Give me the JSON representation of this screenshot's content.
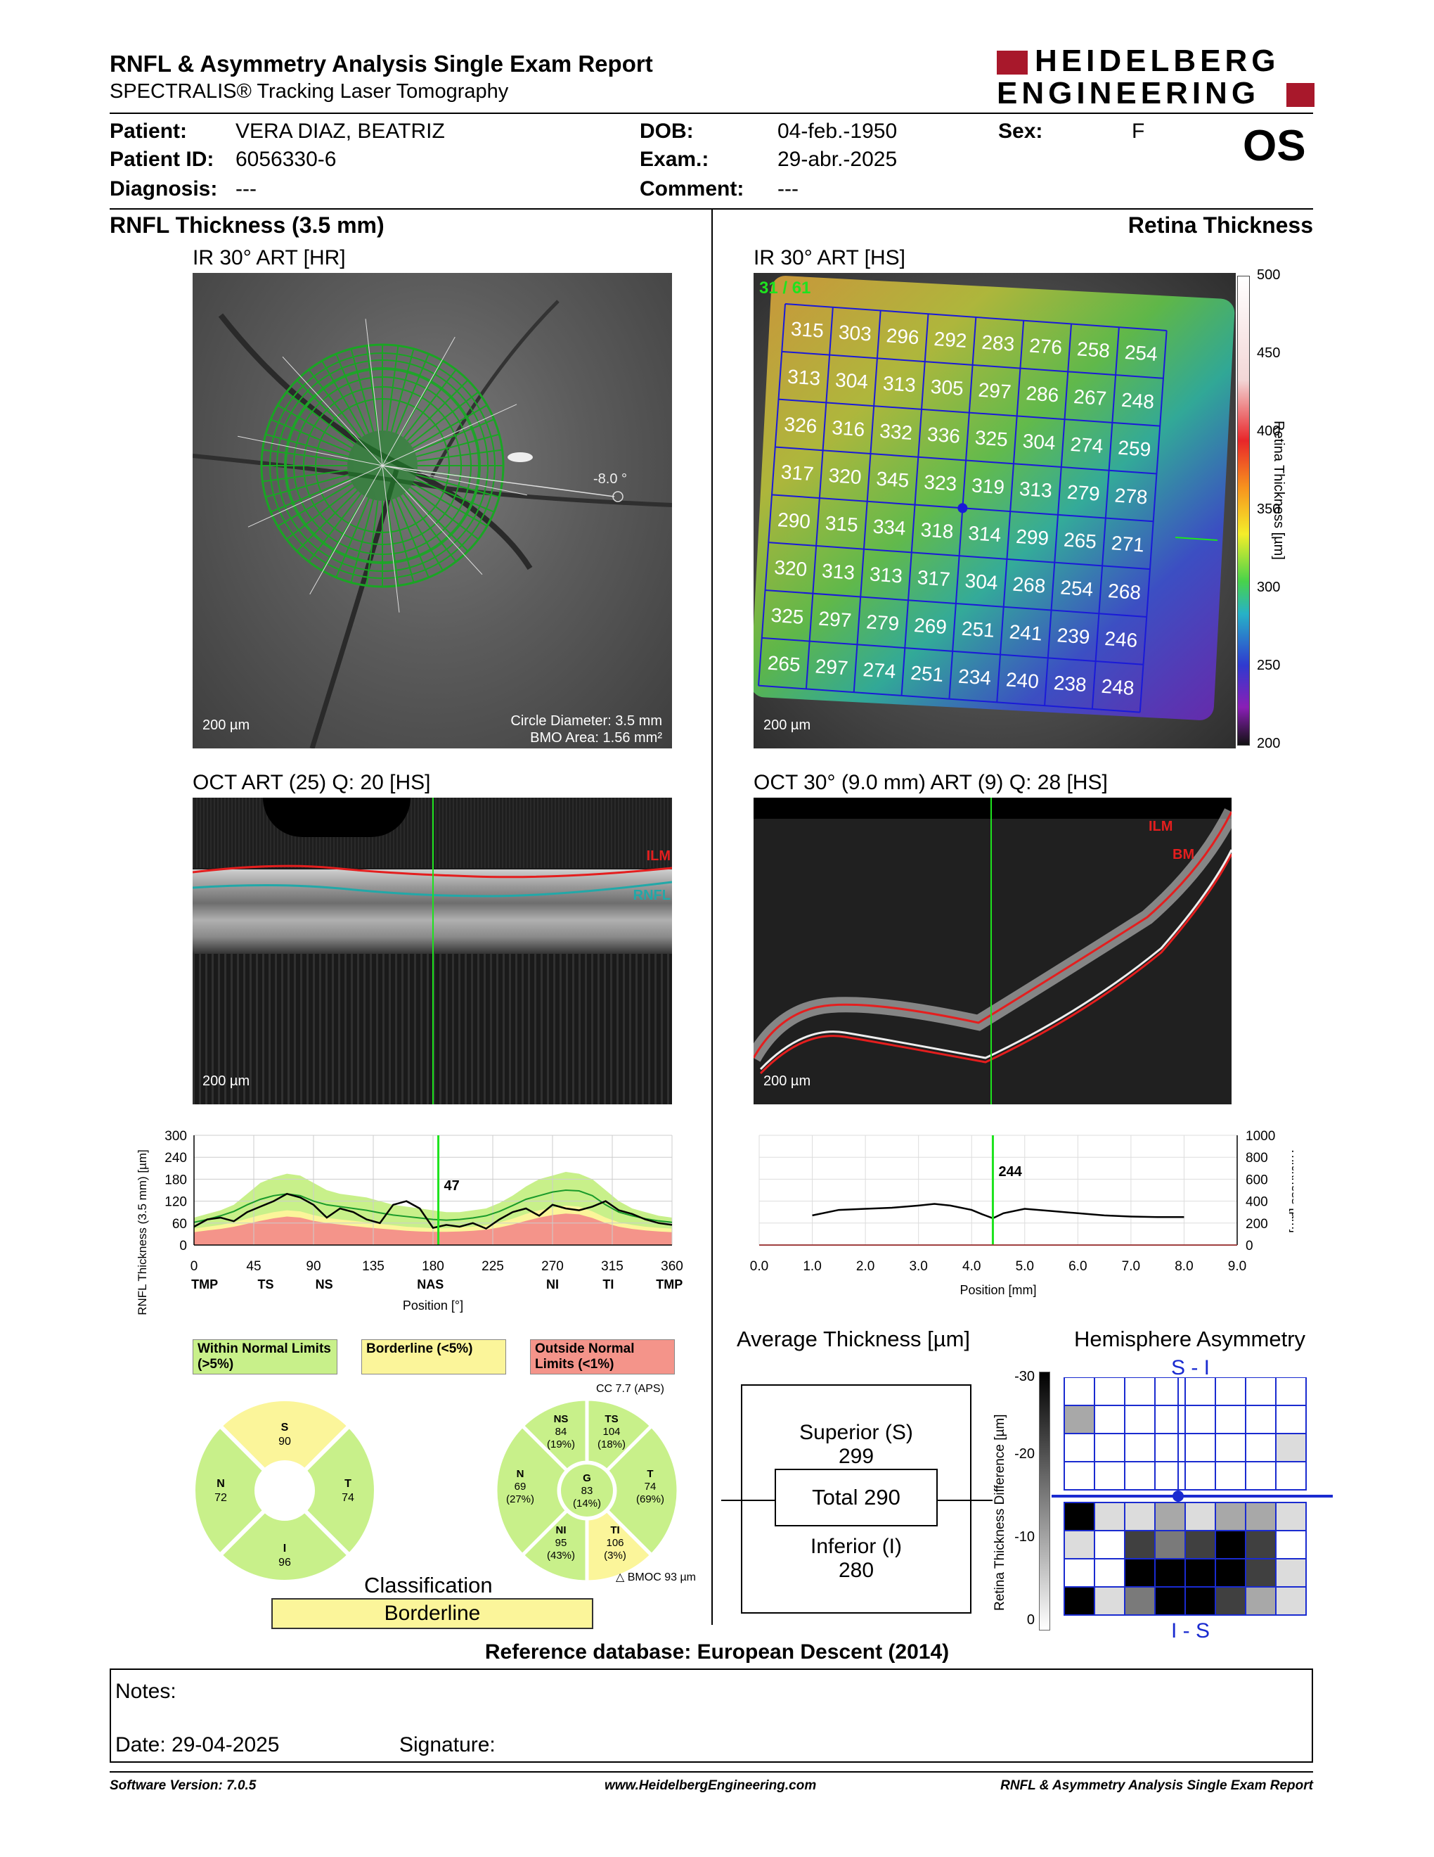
{
  "header": {
    "title": "RNFL & Asymmetry Analysis Single Exam Report",
    "subtitle": "SPECTRALIS® Tracking Laser Tomography",
    "logo_line1": "HEIDELBERG",
    "logo_line2": "ENGINEERING",
    "logo_color": "#a8182b"
  },
  "patient": {
    "patient_label": "Patient:",
    "patient_value": "VERA DIAZ, BEATRIZ",
    "id_label": "Patient ID:",
    "id_value": "6056330-6",
    "diagnosis_label": "Diagnosis:",
    "diagnosis_value": "---",
    "dob_label": "DOB:",
    "dob_value": "04-feb.-1950",
    "exam_label": "Exam.:",
    "exam_value": "29-abr.-2025",
    "comment_label": "Comment:",
    "comment_value": "---",
    "sex_label": "Sex:",
    "sex_value": "F",
    "eye": "OS"
  },
  "sections": {
    "left_title": "RNFL Thickness (3.5 mm)",
    "right_title": "Retina Thickness"
  },
  "fundus_left": {
    "caption": "IR 30° ART [HR]",
    "scale": "200 µm",
    "angle": "-8.0 °",
    "circle_diameter": "Circle Diameter: 3.5 mm",
    "bmo_area": "BMO Area: 1.56 mm²"
  },
  "fundus_right": {
    "caption": "IR 30° ART [HS]",
    "scale": "200 µm",
    "scan_index": "31 / 61",
    "grid_values": [
      [
        315,
        303,
        296,
        292,
        283,
        276,
        258,
        254
      ],
      [
        313,
        304,
        313,
        305,
        297,
        286,
        267,
        248
      ],
      [
        326,
        316,
        332,
        336,
        325,
        304,
        274,
        259
      ],
      [
        317,
        320,
        345,
        323,
        319,
        313,
        279,
        278
      ],
      [
        290,
        315,
        334,
        318,
        314,
        299,
        265,
        271
      ],
      [
        320,
        313,
        313,
        317,
        304,
        268,
        254,
        268
      ],
      [
        325,
        297,
        279,
        269,
        251,
        241,
        239,
        246
      ],
      [
        265,
        297,
        274,
        251,
        234,
        240,
        238,
        248
      ]
    ],
    "colorbar_ticks": [
      "500",
      "450",
      "400",
      "350",
      "300",
      "250",
      "200"
    ],
    "colorbar_label": "Retina Thickness [µm]"
  },
  "oct_left": {
    "caption": "OCT ART (25) Q: 20 [HS]",
    "scale": "200 µm",
    "ilm_label": "ILM",
    "rnfl_label": "RNFL"
  },
  "oct_right": {
    "caption": "OCT 30° (9.0 mm) ART (9) Q: 28 [HS]",
    "scale": "200 µm",
    "ilm_label": "ILM",
    "bm_label": "BM"
  },
  "chart_data": [
    {
      "type": "line",
      "title": "",
      "ylabel": "RNFL Thickness (3.5 mm) [µm]",
      "xlabel": "Position [°]",
      "ylim": [
        0,
        300
      ],
      "xlim": [
        0,
        360
      ],
      "yticks": [
        "300",
        "240",
        "180",
        "120",
        "60",
        "0"
      ],
      "xticks": [
        "0",
        "45",
        "90",
        "135",
        "180",
        "225",
        "270",
        "315",
        "360"
      ],
      "sector_labels": [
        "TMP",
        "TS",
        "NS",
        "NAS",
        "NI",
        "TI",
        "TMP"
      ],
      "cursor_label": "47",
      "cursor_x": 184,
      "x": [
        0,
        10,
        20,
        30,
        40,
        50,
        60,
        70,
        80,
        90,
        100,
        110,
        120,
        130,
        140,
        150,
        160,
        170,
        180,
        190,
        200,
        210,
        220,
        230,
        240,
        250,
        260,
        270,
        280,
        290,
        300,
        310,
        320,
        330,
        340,
        350,
        360
      ],
      "series": [
        {
          "values": [
            50,
            70,
            75,
            65,
            90,
            105,
            120,
            140,
            130,
            110,
            75,
            100,
            90,
            70,
            60,
            110,
            120,
            100,
            47,
            55,
            50,
            60,
            45,
            70,
            90,
            100,
            80,
            110,
            100,
            95,
            105,
            120,
            95,
            85,
            70,
            60,
            55
          ]
        }
      ],
      "normal_band_upper": [
        75,
        85,
        95,
        110,
        140,
        170,
        185,
        195,
        190,
        170,
        150,
        140,
        135,
        130,
        120,
        110,
        105,
        100,
        95,
        90,
        90,
        95,
        100,
        115,
        135,
        160,
        180,
        190,
        200,
        195,
        180,
        150,
        120,
        100,
        90,
        80,
        75
      ],
      "normal_band_mid": [
        62,
        70,
        80,
        92,
        110,
        125,
        135,
        140,
        135,
        120,
        110,
        105,
        100,
        95,
        88,
        82,
        78,
        74,
        70,
        68,
        70,
        74,
        80,
        92,
        108,
        125,
        135,
        145,
        150,
        148,
        135,
        110,
        90,
        80,
        72,
        66,
        62
      ],
      "borderline_upper": [
        45,
        50,
        55,
        62,
        72,
        82,
        90,
        95,
        92,
        82,
        74,
        70,
        66,
        62,
        58,
        54,
        50,
        48,
        46,
        46,
        48,
        50,
        54,
        62,
        72,
        85,
        95,
        102,
        108,
        105,
        92,
        75,
        62,
        55,
        50,
        47,
        45
      ],
      "outside_upper": [
        35,
        40,
        44,
        50,
        58,
        66,
        73,
        78,
        75,
        66,
        60,
        56,
        52,
        48,
        45,
        42,
        39,
        37,
        36,
        36,
        37,
        39,
        42,
        48,
        56,
        66,
        75,
        82,
        86,
        84,
        74,
        60,
        50,
        44,
        40,
        37,
        35
      ]
    },
    {
      "type": "line",
      "title": "",
      "xlabel": "Position [mm]",
      "ylabel": "Thickness [µm]",
      "ylim": [
        0,
        1000
      ],
      "xlim": [
        0,
        9
      ],
      "yticks": [
        "1000",
        "800",
        "600",
        "400",
        "200",
        "0"
      ],
      "xticks": [
        "0.0",
        "1.0",
        "2.0",
        "3.0",
        "4.0",
        "5.0",
        "6.0",
        "7.0",
        "8.0",
        "9.0"
      ],
      "cursor_label": "244",
      "cursor_x": 4.4,
      "x": [
        1.0,
        1.5,
        2.0,
        2.5,
        3.0,
        3.3,
        3.6,
        4.0,
        4.2,
        4.4,
        4.6,
        5.0,
        5.5,
        6.0,
        6.5,
        7.0,
        7.5,
        8.0
      ],
      "series": [
        {
          "values": [
            270,
            320,
            330,
            340,
            360,
            375,
            360,
            320,
            280,
            244,
            290,
            330,
            310,
            290,
            270,
            260,
            255,
            255
          ]
        }
      ]
    }
  ],
  "classification_legend": {
    "within": "Within Normal Limits (>5%)",
    "borderline": "Borderline (<5%)",
    "outside": "Outside Normal Limits (<1%)",
    "within_color": "#c8f08a",
    "borderline_color": "#fbf59a",
    "outside_color": "#f4948a"
  },
  "sectors4": {
    "S": {
      "label": "S",
      "value": "90"
    },
    "N": {
      "label": "N",
      "value": "72"
    },
    "T": {
      "label": "T",
      "value": "74"
    },
    "I": {
      "label": "I",
      "value": "96"
    }
  },
  "sectors6": {
    "cc": "CC 7.7 (APS)",
    "NS": {
      "label": "NS",
      "value": "84",
      "pct": "(19%)"
    },
    "TS": {
      "label": "TS",
      "value": "104",
      "pct": "(18%)"
    },
    "N": {
      "label": "N",
      "value": "69",
      "pct": "(27%)"
    },
    "G": {
      "label": "G",
      "value": "83",
      "pct": "(14%)"
    },
    "T": {
      "label": "T",
      "value": "74",
      "pct": "(69%)"
    },
    "NI": {
      "label": "NI",
      "value": "95",
      "pct": "(43%)"
    },
    "TI": {
      "label": "TI",
      "value": "106",
      "pct": "(3%)"
    },
    "bmoc": "BMOC 93 µm"
  },
  "classification": {
    "title": "Classification",
    "value": "Borderline"
  },
  "average_thickness": {
    "title": "Average Thickness [µm]",
    "superior_label": "Superior (S)",
    "superior_value": "299",
    "total": "Total 290",
    "inferior_label": "Inferior (I)",
    "inferior_value": "280"
  },
  "hemisphere": {
    "title": "Hemisphere Asymmetry",
    "top_label": "S - I",
    "bottom_label": "I - S",
    "scale_label": "Retina Thickness Difference [µm]",
    "scale_ticks": [
      "-30",
      "-20",
      "-10",
      "0"
    ],
    "top_cells": [
      [
        0,
        0,
        0,
        0,
        0,
        0,
        0,
        0
      ],
      [
        2,
        0,
        0,
        0,
        0,
        0,
        0,
        0
      ],
      [
        0,
        0,
        0,
        0,
        0,
        0,
        0,
        1
      ],
      [
        0,
        0,
        0,
        0,
        0,
        0,
        0,
        0
      ]
    ],
    "bottom_cells": [
      [
        5,
        1,
        1,
        2,
        1,
        2,
        2,
        1
      ],
      [
        1,
        0,
        4,
        3,
        4,
        5,
        4,
        0
      ],
      [
        0,
        0,
        5,
        5,
        5,
        5,
        4,
        1
      ],
      [
        5,
        1,
        3,
        5,
        5,
        4,
        2,
        1
      ]
    ]
  },
  "reference": "Reference database: European Descent (2014)",
  "notes": {
    "label": "Notes:",
    "date": "Date: 29-04-2025",
    "signature": "Signature:"
  },
  "footer": {
    "software": "Software Version: 7.0.5",
    "website": "www.HeidelbergEngineering.com",
    "report": "RNFL & Asymmetry Analysis Single Exam Report"
  }
}
